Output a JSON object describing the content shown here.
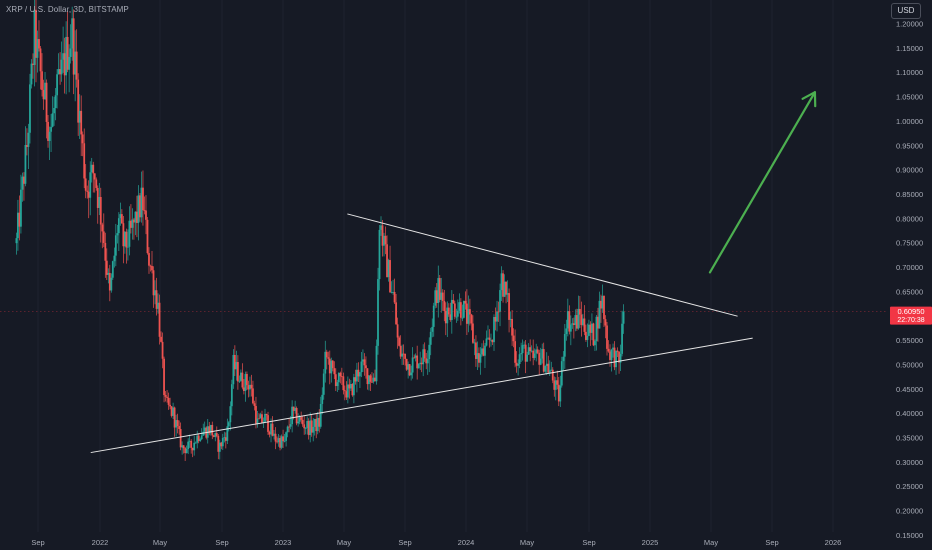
{
  "header": {
    "symbol_title": "XRP / U.S. Dollar, 3D, BITSTAMP",
    "currency_label": "USD"
  },
  "price_badge": {
    "price": "0.60950",
    "countdown": "22:70:38",
    "color": "#f23645"
  },
  "colors": {
    "background": "#161a25",
    "axis_text": "#a9adb8",
    "up_candle": "#26a69a",
    "down_candle": "#ef5350",
    "trendline": "#e6e6e6",
    "arrow": "#4caf50",
    "grid": "#1e2230"
  },
  "chart_data": {
    "type": "candlestick",
    "title": "XRP / U.S. Dollar, 3D, BITSTAMP",
    "y_axis_side": "right",
    "y_ticks": [
      "1.20000",
      "1.15000",
      "1.10000",
      "1.05000",
      "1.00000",
      "0.95000",
      "0.90000",
      "0.85000",
      "0.80000",
      "0.75000",
      "0.70000",
      "0.65000",
      "0.60000",
      "0.55000",
      "0.50000",
      "0.45000",
      "0.40000",
      "0.35000",
      "0.30000",
      "0.25000",
      "0.20000",
      "0.15000"
    ],
    "x_ticks": [
      "Sep",
      "2022",
      "May",
      "Sep",
      "2023",
      "May",
      "Sep",
      "2024",
      "May",
      "Sep",
      "2025",
      "May",
      "Sep",
      "2026"
    ],
    "ylim": [
      0.13,
      1.22
    ],
    "grid": false,
    "price_trend": [
      [
        "2021-07-20",
        0.75
      ],
      [
        "2021-08-10",
        0.95
      ],
      [
        "2021-08-25",
        1.18
      ],
      [
        "2021-09-08",
        1.08
      ],
      [
        "2021-09-25",
        0.98
      ],
      [
        "2021-10-10",
        1.06
      ],
      [
        "2021-10-25",
        1.13
      ],
      [
        "2021-11-08",
        1.18
      ],
      [
        "2021-11-22",
        1.02
      ],
      [
        "2021-12-06",
        0.86
      ],
      [
        "2021-12-22",
        0.9
      ],
      [
        "2022-01-08",
        0.78
      ],
      [
        "2022-01-22",
        0.64
      ],
      [
        "2022-02-08",
        0.8
      ],
      [
        "2022-02-20",
        0.74
      ],
      [
        "2022-03-05",
        0.77
      ],
      [
        "2022-03-28",
        0.84
      ],
      [
        "2022-04-10",
        0.72
      ],
      [
        "2022-04-28",
        0.62
      ],
      [
        "2022-05-12",
        0.42
      ],
      [
        "2022-05-28",
        0.4
      ],
      [
        "2022-06-15",
        0.33
      ],
      [
        "2022-07-01",
        0.33
      ],
      [
        "2022-07-20",
        0.36
      ],
      [
        "2022-08-10",
        0.37
      ],
      [
        "2022-08-28",
        0.33
      ],
      [
        "2022-09-15",
        0.37
      ],
      [
        "2022-09-25",
        0.5
      ],
      [
        "2022-10-10",
        0.47
      ],
      [
        "2022-10-28",
        0.46
      ],
      [
        "2022-11-12",
        0.38
      ],
      [
        "2022-11-28",
        0.39
      ],
      [
        "2022-12-15",
        0.35
      ],
      [
        "2023-01-05",
        0.34
      ],
      [
        "2023-01-20",
        0.4
      ],
      [
        "2023-02-10",
        0.38
      ],
      [
        "2023-02-25",
        0.37
      ],
      [
        "2023-03-15",
        0.38
      ],
      [
        "2023-03-28",
        0.52
      ],
      [
        "2023-04-12",
        0.48
      ],
      [
        "2023-04-28",
        0.46
      ],
      [
        "2023-05-15",
        0.44
      ],
      [
        "2023-06-05",
        0.5
      ],
      [
        "2023-06-20",
        0.48
      ],
      [
        "2023-07-05",
        0.47
      ],
      [
        "2023-07-13",
        0.8
      ],
      [
        "2023-07-25",
        0.72
      ],
      [
        "2023-08-10",
        0.64
      ],
      [
        "2023-08-20",
        0.53
      ],
      [
        "2023-09-10",
        0.5
      ],
      [
        "2023-09-25",
        0.51
      ],
      [
        "2023-10-15",
        0.52
      ],
      [
        "2023-11-05",
        0.66
      ],
      [
        "2023-11-20",
        0.61
      ],
      [
        "2023-12-05",
        0.62
      ],
      [
        "2023-12-25",
        0.62
      ],
      [
        "2024-01-10",
        0.58
      ],
      [
        "2024-01-25",
        0.51
      ],
      [
        "2024-02-10",
        0.53
      ],
      [
        "2024-02-28",
        0.58
      ],
      [
        "2024-03-12",
        0.68
      ],
      [
        "2024-03-25",
        0.62
      ],
      [
        "2024-04-10",
        0.51
      ],
      [
        "2024-04-25",
        0.53
      ],
      [
        "2024-05-10",
        0.51
      ],
      [
        "2024-05-28",
        0.52
      ],
      [
        "2024-06-15",
        0.49
      ],
      [
        "2024-07-05",
        0.43
      ],
      [
        "2024-07-18",
        0.6
      ],
      [
        "2024-08-01",
        0.58
      ],
      [
        "2024-08-15",
        0.6
      ],
      [
        "2024-08-28",
        0.57
      ],
      [
        "2024-09-12",
        0.56
      ],
      [
        "2024-09-28",
        0.64
      ],
      [
        "2024-10-10",
        0.53
      ],
      [
        "2024-10-22",
        0.52
      ],
      [
        "2024-11-01",
        0.5
      ],
      [
        "2024-11-08",
        0.58
      ],
      [
        "2024-11-12",
        0.61
      ]
    ],
    "drawings": {
      "upper_trendline": [
        [
          "2023-05-10",
          0.81
        ],
        [
          "2025-06-25",
          0.6
        ]
      ],
      "lower_trendline": [
        [
          "2021-12-15",
          0.32
        ],
        [
          "2025-07-25",
          0.555
        ]
      ],
      "projection_arrow": [
        [
          "2025-05-01",
          0.69
        ],
        [
          "2025-11-26",
          1.06
        ]
      ]
    },
    "last_price": 0.6095
  }
}
